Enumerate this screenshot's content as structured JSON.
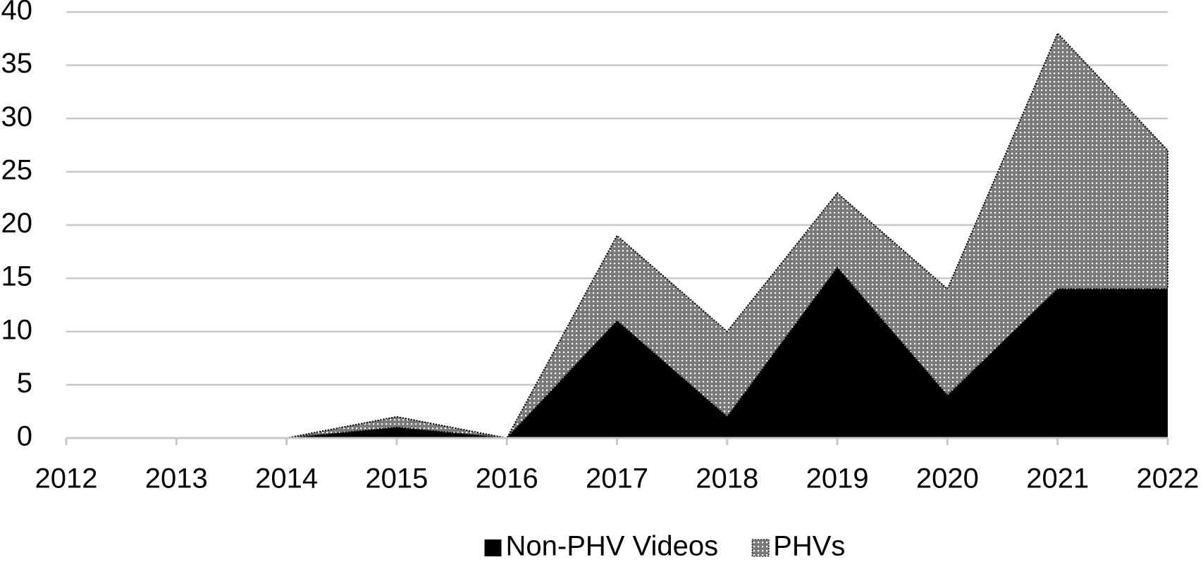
{
  "chart_data": {
    "type": "stacked_area",
    "x": [
      2012,
      2013,
      2014,
      2015,
      2016,
      2017,
      2018,
      2019,
      2020,
      2021,
      2022
    ],
    "series": [
      {
        "name": "Non-PHV Videos",
        "color": "#000000",
        "values": [
          0,
          0,
          0,
          1,
          0,
          11,
          2,
          16,
          4,
          14,
          14
        ]
      },
      {
        "name": "PHVs",
        "color": "#7a7a7a",
        "pattern": "dots",
        "values": [
          0,
          0,
          0,
          1,
          0,
          8,
          8,
          7,
          10,
          24,
          13
        ]
      }
    ],
    "xlim": [
      2012,
      2022
    ],
    "xticks": [
      2012,
      2013,
      2014,
      2015,
      2016,
      2017,
      2018,
      2019,
      2020,
      2021,
      2022
    ],
    "ylim": [
      0,
      40
    ],
    "yticks": [
      0,
      5,
      10,
      15,
      20,
      25,
      30,
      35,
      40
    ],
    "grid": true,
    "legend": "bottom"
  }
}
